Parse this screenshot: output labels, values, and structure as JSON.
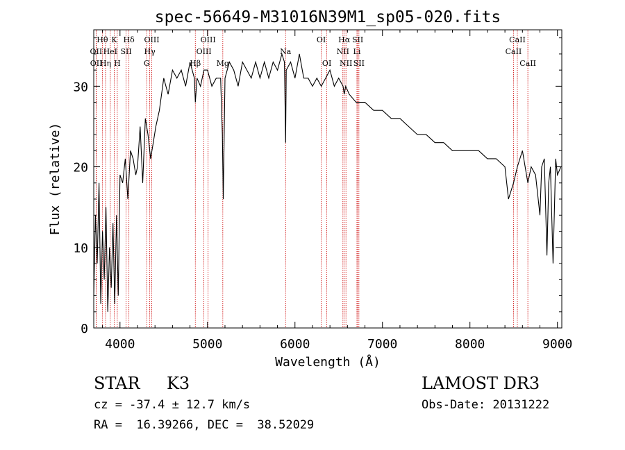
{
  "chart_data": {
    "type": "line",
    "title": "spec-56649-M31016N39M1_sp05-020.fits",
    "xlabel": "Wavelength (Å)",
    "ylabel": "Flux (relative)",
    "xlim": [
      3700,
      9050
    ],
    "ylim": [
      0,
      37
    ],
    "xticks": [
      4000,
      5000,
      6000,
      7000,
      8000,
      9000
    ],
    "yticks": [
      0,
      10,
      20,
      30
    ],
    "line_color": "#000000",
    "marker_color": "#cc0000",
    "series": [
      {
        "name": "flux",
        "x": [
          3700,
          3720,
          3740,
          3760,
          3780,
          3800,
          3820,
          3840,
          3860,
          3880,
          3900,
          3920,
          3940,
          3960,
          3980,
          4000,
          4030,
          4060,
          4090,
          4120,
          4150,
          4180,
          4200,
          4230,
          4260,
          4290,
          4320,
          4350,
          4380,
          4410,
          4450,
          4500,
          4550,
          4600,
          4650,
          4700,
          4750,
          4800,
          4850,
          4861,
          4880,
          4920,
          4960,
          5000,
          5050,
          5100,
          5150,
          5170,
          5180,
          5200,
          5250,
          5300,
          5350,
          5400,
          5450,
          5500,
          5550,
          5600,
          5650,
          5700,
          5750,
          5800,
          5850,
          5880,
          5893,
          5900,
          5950,
          6000,
          6050,
          6100,
          6150,
          6200,
          6250,
          6300,
          6350,
          6400,
          6450,
          6500,
          6550,
          6563,
          6580,
          6620,
          6700,
          6800,
          6900,
          7000,
          7100,
          7200,
          7300,
          7400,
          7500,
          7600,
          7700,
          7800,
          7900,
          8000,
          8100,
          8200,
          8300,
          8400,
          8440,
          8498,
          8542,
          8600,
          8662,
          8700,
          8750,
          8800,
          8820,
          8850,
          8880,
          8900,
          8920,
          8950,
          8980,
          9000,
          9040
        ],
        "y": [
          4,
          14,
          8,
          18,
          3,
          12,
          6,
          15,
          2,
          10,
          5,
          13,
          3,
          14,
          4,
          19,
          18,
          21,
          16,
          22,
          21,
          19,
          20,
          25,
          18,
          26,
          24,
          21,
          23,
          25,
          27,
          31,
          29,
          32,
          31,
          32,
          30,
          33,
          31,
          28,
          31,
          30,
          32,
          32,
          30,
          31,
          31,
          24,
          16,
          31,
          33,
          32,
          30,
          33,
          32,
          31,
          33,
          31,
          33,
          31,
          33,
          32,
          34,
          33,
          23,
          32,
          33,
          31,
          34,
          31,
          31,
          30,
          31,
          30,
          31,
          32,
          30,
          31,
          30,
          29,
          30,
          29,
          28,
          28,
          27,
          27,
          26,
          26,
          25,
          24,
          24,
          23,
          23,
          22,
          22,
          22,
          22,
          21,
          21,
          20,
          16,
          18,
          20,
          22,
          18,
          20,
          19,
          14,
          20,
          21,
          9,
          18,
          20,
          8,
          21,
          19,
          20
        ]
      }
    ],
    "lines": [
      {
        "label": "Hθ",
        "wave": 3798,
        "row": 1
      },
      {
        "label": "OII",
        "wave": 3727,
        "row": 2
      },
      {
        "label": "OII",
        "wave": 3729,
        "row": 3
      },
      {
        "label": "K",
        "wave": 3934,
        "row": 1
      },
      {
        "label": "HeI",
        "wave": 3889,
        "row": 2
      },
      {
        "label": "Hη",
        "wave": 3835,
        "row": 3
      },
      {
        "label": "Hδ",
        "wave": 4102,
        "row": 1
      },
      {
        "label": "SII",
        "wave": 4070,
        "row": 2
      },
      {
        "label": "H",
        "wave": 3969,
        "row": 3
      },
      {
        "label": "OIII",
        "wave": 4363,
        "row": 1
      },
      {
        "label": "Hγ",
        "wave": 4340,
        "row": 2
      },
      {
        "label": "G",
        "wave": 4305,
        "row": 3
      },
      {
        "label": "Hβ",
        "wave": 4861,
        "row": 3
      },
      {
        "label": "OIII",
        "wave": 5007,
        "row": 1
      },
      {
        "label": "OIII",
        "wave": 4959,
        "row": 2
      },
      {
        "label": "Mg",
        "wave": 5175,
        "row": 3
      },
      {
        "label": "Na",
        "wave": 5893,
        "row": 2
      },
      {
        "label": "OI",
        "wave": 6300,
        "row": 1
      },
      {
        "label": "OI",
        "wave": 6364,
        "row": 3
      },
      {
        "label": "Hα",
        "wave": 6563,
        "row": 1
      },
      {
        "label": "SII",
        "wave": 6717,
        "row": 1
      },
      {
        "label": "NII",
        "wave": 6548,
        "row": 2
      },
      {
        "label": "Li",
        "wave": 6708,
        "row": 2
      },
      {
        "label": "NII",
        "wave": 6583,
        "row": 3
      },
      {
        "label": "SII",
        "wave": 6731,
        "row": 3
      },
      {
        "label": "CaII",
        "wave": 8542,
        "row": 1
      },
      {
        "label": "CaII",
        "wave": 8498,
        "row": 2
      },
      {
        "label": "CaII",
        "wave": 8662,
        "row": 3
      }
    ]
  },
  "info": {
    "class": "STAR",
    "subclass": "K3",
    "survey": "LAMOST DR3",
    "cz": "cz = -37.4 ± 12.7 km/s",
    "obsdate": "Obs-Date: 20131222",
    "radec": "RA =  16.39266, DEC =  38.52029"
  }
}
